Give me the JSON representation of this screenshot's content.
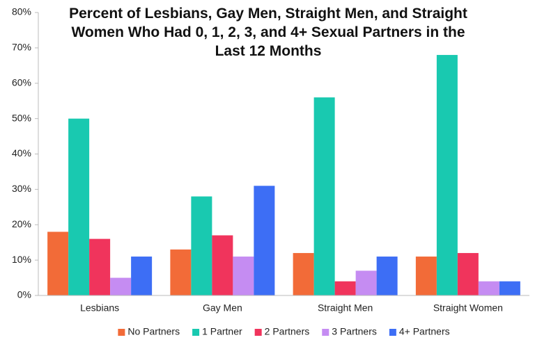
{
  "chart_data": {
    "type": "bar",
    "title": "Percent of Lesbians, Gay Men, Straight Men, and Straight Women Who Had 0, 1, 2, 3, and 4+ Sexual Partners in the Last 12 Months",
    "categories": [
      "Lesbians",
      "Gay Men",
      "Straight Men",
      "Straight Women"
    ],
    "series": [
      {
        "name": "No Partners",
        "color": "#f26b38",
        "values": [
          18,
          13,
          12,
          11
        ]
      },
      {
        "name": "1 Partner",
        "color": "#19c9b0",
        "values": [
          50,
          28,
          56,
          68
        ]
      },
      {
        "name": "2 Partners",
        "color": "#f0345c",
        "values": [
          16,
          17,
          4,
          12
        ]
      },
      {
        "name": "3 Partners",
        "color": "#c58cf2",
        "values": [
          5,
          11,
          7,
          4
        ]
      },
      {
        "name": "4+ Partners",
        "color": "#3d6ef5",
        "values": [
          11,
          31,
          11,
          4
        ]
      }
    ],
    "ylim": [
      0,
      80
    ],
    "yticks": [
      {
        "value": 0,
        "label": "0%"
      },
      {
        "value": 10,
        "label": "10%"
      },
      {
        "value": 20,
        "label": "20%"
      },
      {
        "value": 30,
        "label": "30%"
      },
      {
        "value": 40,
        "label": "40%"
      },
      {
        "value": 50,
        "label": "50%"
      },
      {
        "value": 60,
        "label": "60%"
      },
      {
        "value": 70,
        "label": "70%"
      },
      {
        "value": 80,
        "label": "80%"
      }
    ],
    "grid": false,
    "legend": "bottom"
  }
}
